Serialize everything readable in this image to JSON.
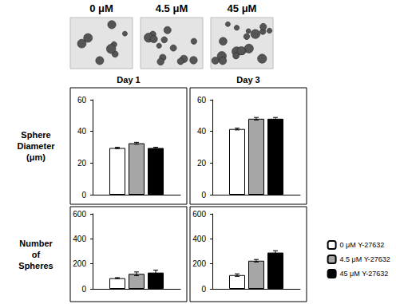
{
  "images": {
    "labels": [
      "0 μM",
      "4.5 μM",
      "45 μM"
    ]
  },
  "chart_data": [
    {
      "type": "bar",
      "title": "Day 1",
      "ylabel": "Sphere Diameter (μm)",
      "categories": [
        null
      ],
      "series": [
        {
          "name": "0 μM Y-27632",
          "color": "#ffffff",
          "values": [
            29.5
          ],
          "errors": [
            0.5
          ]
        },
        {
          "name": "4.5 μM Y-27632",
          "color": "#a6a6a6",
          "values": [
            32.5
          ],
          "errors": [
            0.6
          ]
        },
        {
          "name": "45 μM Y-27632",
          "color": "#000000",
          "values": [
            29.5
          ],
          "errors": [
            0.5
          ]
        }
      ],
      "ylim": [
        0,
        60
      ],
      "yticks": [
        0,
        20,
        40,
        60
      ],
      "grid": false,
      "legend": "right"
    },
    {
      "type": "bar",
      "title": "Day 3",
      "categories": [
        null
      ],
      "series": [
        {
          "name": "0 μM Y-27632",
          "color": "#ffffff",
          "values": [
            41.5
          ],
          "errors": [
            0.6
          ]
        },
        {
          "name": "4.5 μM Y-27632",
          "color": "#a6a6a6",
          "values": [
            48
          ],
          "errors": [
            0.8
          ]
        },
        {
          "name": "45 μM Y-27632",
          "color": "#000000",
          "values": [
            48
          ],
          "errors": [
            0.8
          ]
        }
      ],
      "ylim": [
        0,
        60
      ],
      "yticks": [
        0,
        20,
        40,
        60
      ],
      "grid": false,
      "legend": "right"
    },
    {
      "type": "bar",
      "ylabel": "Number of Spheres",
      "categories": [
        null
      ],
      "series": [
        {
          "name": "0 μM Y-27632",
          "color": "#ffffff",
          "values": [
            85
          ],
          "errors": [
            5
          ]
        },
        {
          "name": "4.5 μM Y-27632",
          "color": "#a6a6a6",
          "values": [
            120
          ],
          "errors": [
            15
          ]
        },
        {
          "name": "45 μM Y-27632",
          "color": "#000000",
          "values": [
            130
          ],
          "errors": [
            20
          ]
        }
      ],
      "ylim": [
        0,
        600
      ],
      "yticks": [
        0,
        200,
        400,
        600
      ],
      "grid": false,
      "legend": "right"
    },
    {
      "type": "bar",
      "categories": [
        null
      ],
      "series": [
        {
          "name": "0 μM Y-27632",
          "color": "#ffffff",
          "values": [
            110
          ],
          "errors": [
            10
          ]
        },
        {
          "name": "4.5 μM Y-27632",
          "color": "#a6a6a6",
          "values": [
            225
          ],
          "errors": [
            10
          ]
        },
        {
          "name": "45 μM Y-27632",
          "color": "#000000",
          "values": [
            290
          ],
          "errors": [
            15
          ]
        }
      ],
      "ylim": [
        0,
        600
      ],
      "yticks": [
        0,
        200,
        400,
        600
      ],
      "grid": false,
      "legend": "right"
    }
  ]
}
